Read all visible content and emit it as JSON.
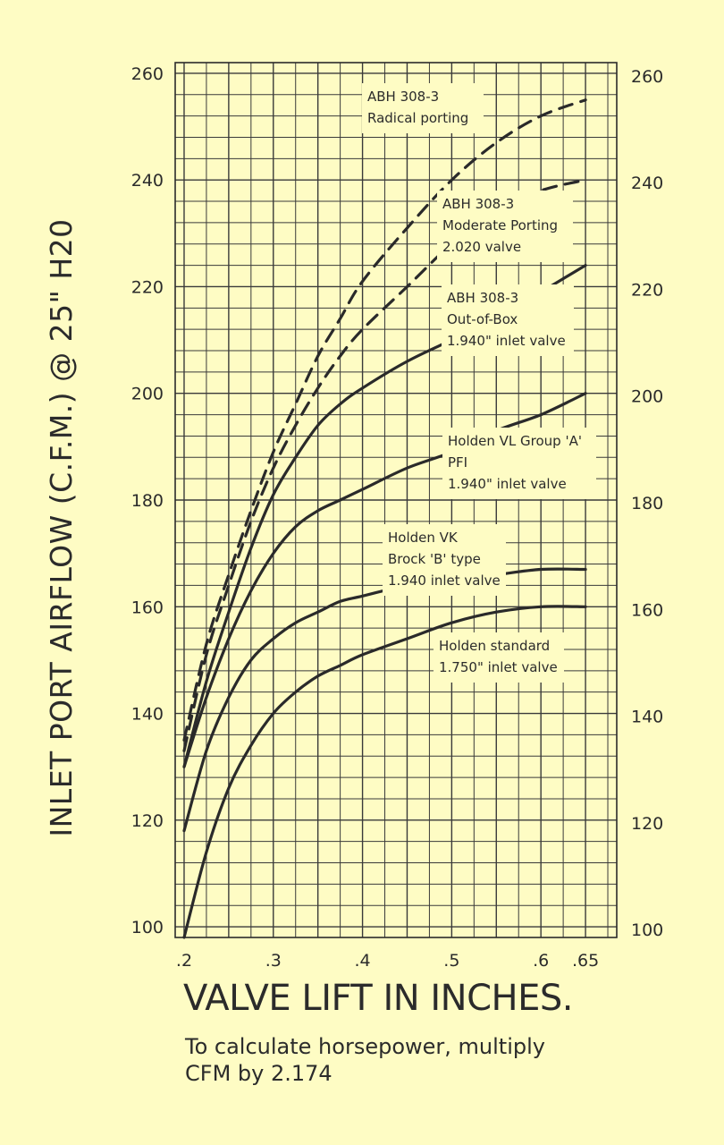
{
  "chart_data": {
    "type": "line",
    "ylabel": "INLET PORT AIRFLOW (C.F.M.) @ 25\" H20",
    "xlabel": "VALVE LIFT IN INCHES.",
    "note": [
      "To calculate horsepower, multiply",
      "CFM by 2.174"
    ],
    "x_ticks": [
      ".2",
      ".3",
      ".4",
      ".5",
      ".6",
      ".65"
    ],
    "x_tick_values": [
      0.2,
      0.3,
      0.4,
      0.5,
      0.6,
      0.65
    ],
    "y_ticks": [
      "100",
      "120",
      "140",
      "160",
      "180",
      "200",
      "220",
      "240",
      "260"
    ],
    "y_tick_values": [
      100,
      120,
      140,
      160,
      180,
      200,
      220,
      240,
      260
    ],
    "xlim": [
      0.19,
      0.685
    ],
    "ylim": [
      98,
      262
    ],
    "grid": true,
    "series": [
      {
        "labels": [
          "ABH 308-3",
          "Radical porting"
        ],
        "style": "dashed",
        "x": [
          0.2,
          0.225,
          0.25,
          0.275,
          0.3,
          0.325,
          0.35,
          0.375,
          0.4,
          0.45,
          0.5,
          0.55,
          0.6,
          0.65
        ],
        "y": [
          135,
          153,
          166,
          178,
          189,
          198,
          207,
          214,
          221,
          231,
          240,
          247,
          252,
          255
        ]
      },
      {
        "labels": [
          "ABH 308-3",
          "Moderate Porting",
          "2.020 valve"
        ],
        "style": "dashed",
        "x": [
          0.2,
          0.225,
          0.25,
          0.275,
          0.3,
          0.325,
          0.35,
          0.375,
          0.4,
          0.45,
          0.5,
          0.55,
          0.6,
          0.65
        ],
        "y": [
          133,
          151,
          164,
          176,
          186,
          194,
          201,
          207,
          212,
          220,
          228,
          234,
          238,
          240
        ]
      },
      {
        "labels": [
          "ABH 308-3",
          "Out-of-Box",
          "1.940\" inlet valve"
        ],
        "style": "solid",
        "x": [
          0.2,
          0.225,
          0.25,
          0.275,
          0.3,
          0.325,
          0.35,
          0.375,
          0.4,
          0.45,
          0.5,
          0.55,
          0.6,
          0.65
        ],
        "y": [
          130,
          146,
          159,
          171,
          181,
          188,
          194,
          198,
          201,
          206,
          210,
          214,
          219,
          224
        ]
      },
      {
        "labels": [
          "Holden VL Group 'A'",
          "PFI",
          "1.940\" inlet valve"
        ],
        "style": "solid",
        "x": [
          0.2,
          0.225,
          0.25,
          0.275,
          0.3,
          0.325,
          0.35,
          0.375,
          0.4,
          0.45,
          0.5,
          0.55,
          0.6,
          0.65
        ],
        "y": [
          130,
          143,
          154,
          163,
          170,
          175,
          178,
          180,
          182,
          186,
          189,
          193,
          196,
          200
        ]
      },
      {
        "labels": [
          "Holden VK",
          "Brock 'B' type",
          "1.940 inlet valve"
        ],
        "style": "solid",
        "x": [
          0.2,
          0.225,
          0.25,
          0.275,
          0.3,
          0.325,
          0.35,
          0.375,
          0.4,
          0.45,
          0.5,
          0.55,
          0.6,
          0.65
        ],
        "y": [
          118,
          133,
          143,
          150,
          154,
          157,
          159,
          161,
          162,
          164,
          165,
          166,
          167,
          167
        ]
      },
      {
        "labels": [
          "Holden standard",
          "1.750\" inlet valve"
        ],
        "style": "solid",
        "x": [
          0.2,
          0.225,
          0.25,
          0.275,
          0.3,
          0.325,
          0.35,
          0.375,
          0.4,
          0.45,
          0.5,
          0.55,
          0.6,
          0.65
        ],
        "y": [
          98,
          114,
          126,
          134,
          140,
          144,
          147,
          149,
          151,
          154,
          157,
          159,
          160,
          160
        ]
      }
    ]
  }
}
